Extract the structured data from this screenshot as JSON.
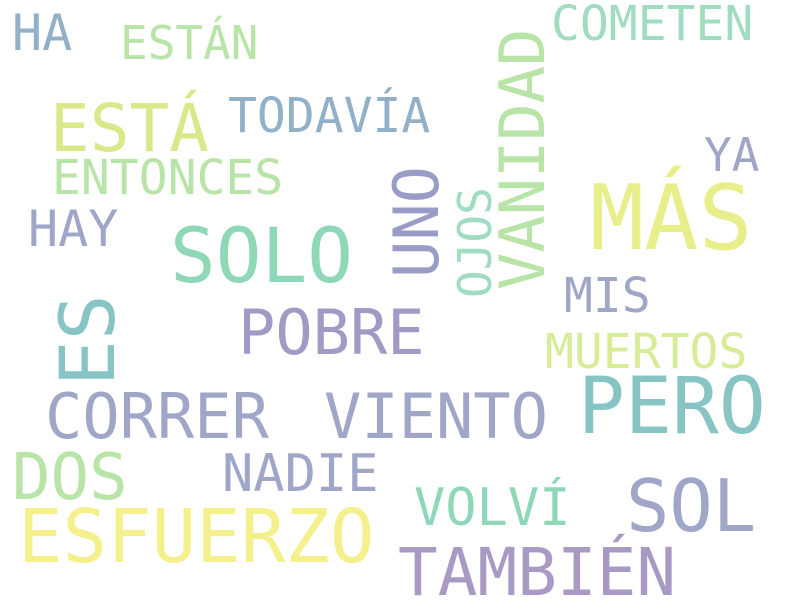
{
  "words": [
    {
      "text": "HA",
      "color": "#92b0c8",
      "orientation": "horizontal"
    },
    {
      "text": "ESTÁN",
      "color": "#b8e4a8",
      "orientation": "horizontal"
    },
    {
      "text": "VANIDAD",
      "color": "#b8e4a8",
      "orientation": "vertical"
    },
    {
      "text": "COMETEN",
      "color": "#a0dcc0",
      "orientation": "horizontal"
    },
    {
      "text": "ESTÁ",
      "color": "#dbe88a",
      "orientation": "horizontal"
    },
    {
      "text": "TODAVÍA",
      "color": "#92b0c8",
      "orientation": "horizontal"
    },
    {
      "text": "UNO",
      "color": "#9a9cc8",
      "orientation": "vertical"
    },
    {
      "text": "OJOS",
      "color": "#a0dcc0",
      "orientation": "vertical"
    },
    {
      "text": "ENTONCES",
      "color": "#b8e4a8",
      "orientation": "horizontal"
    },
    {
      "text": "YA",
      "color": "#a0a6c8",
      "orientation": "horizontal"
    },
    {
      "text": "MÁS",
      "color": "#e8ee8a",
      "orientation": "horizontal"
    },
    {
      "text": "HAY",
      "color": "#a0a6c8",
      "orientation": "horizontal"
    },
    {
      "text": "SOLO",
      "color": "#8ed8b8",
      "orientation": "horizontal"
    },
    {
      "text": "MIS",
      "color": "#a0a6c8",
      "orientation": "horizontal"
    },
    {
      "text": "ES",
      "color": "#88c4c4",
      "orientation": "vertical"
    },
    {
      "text": "POBRE",
      "color": "#a09ac4",
      "orientation": "horizontal"
    },
    {
      "text": "MUERTOS",
      "color": "#d8ec98",
      "orientation": "horizontal"
    },
    {
      "text": "PERO",
      "color": "#88c4c4",
      "orientation": "horizontal"
    },
    {
      "text": "CORRER",
      "color": "#a0a6c8",
      "orientation": "horizontal"
    },
    {
      "text": "VIENTO",
      "color": "#a0a6c8",
      "orientation": "horizontal"
    },
    {
      "text": "DOS",
      "color": "#b8e4a8",
      "orientation": "horizontal"
    },
    {
      "text": "NADIE",
      "color": "#a0a6c8",
      "orientation": "horizontal"
    },
    {
      "text": "SOL",
      "color": "#a0a6c8",
      "orientation": "horizontal"
    },
    {
      "text": "VOLVÍ",
      "color": "#8ed8b8",
      "orientation": "horizontal"
    },
    {
      "text": "ESFUERZO",
      "color": "#f4f08c",
      "orientation": "horizontal"
    },
    {
      "text": "TAMBIÉN",
      "color": "#a89ac4",
      "orientation": "horizontal"
    }
  ]
}
